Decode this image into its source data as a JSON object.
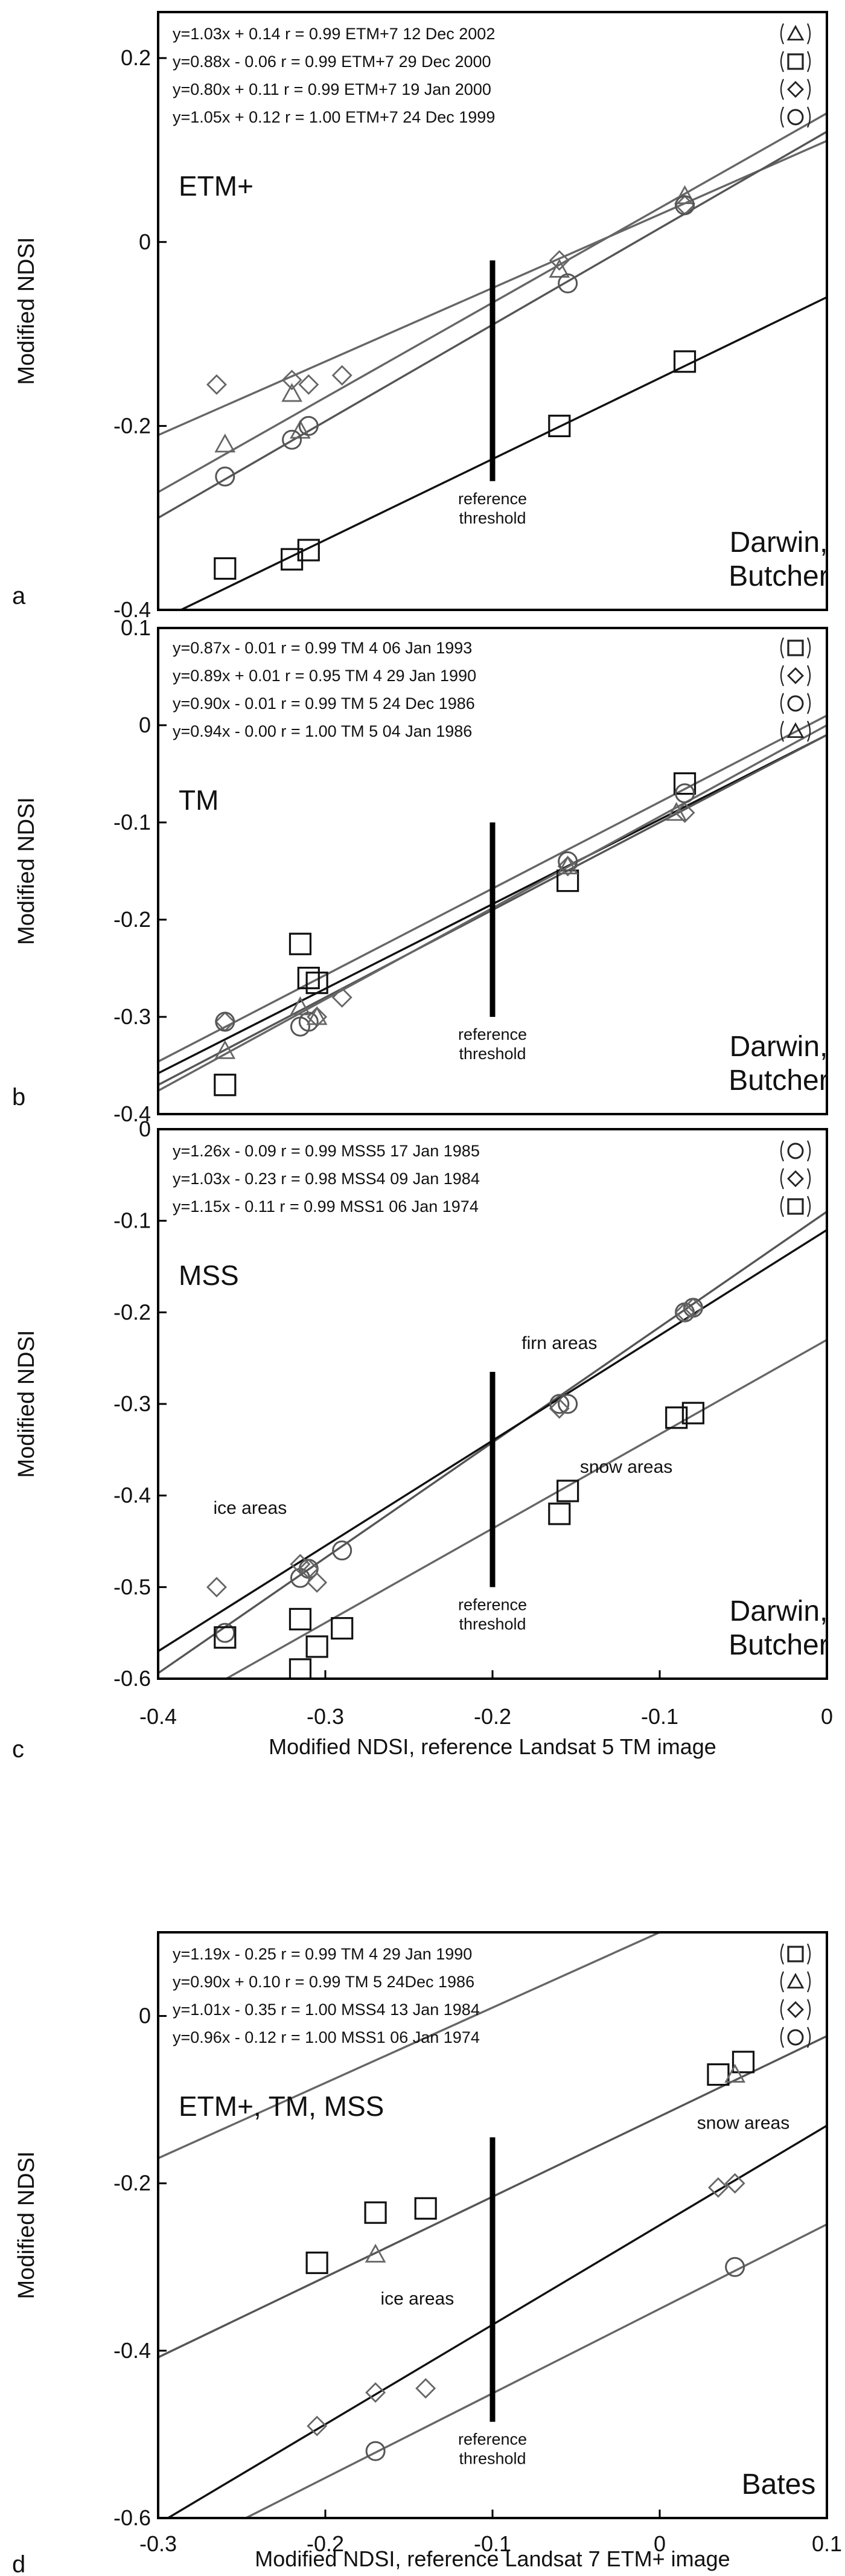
{
  "chart_data": [
    {
      "type": "scatter",
      "panel_label": "a",
      "dataset_label": "ETM+",
      "site_label_lines": [
        "Darwin,",
        "Butcher"
      ],
      "threshold_label_lines": [
        "reference",
        "threshold"
      ],
      "threshold_x": -0.2,
      "threshold_y_range": [
        -0.26,
        -0.02
      ],
      "xlim": [
        -0.4,
        0
      ],
      "ylim": [
        -0.4,
        0.25
      ],
      "y_ticks": [
        0.2,
        0,
        -0.2,
        -0.4
      ],
      "y_tick_labels": [
        "0.2",
        "0",
        "-0.2",
        "-0.4"
      ],
      "x_ticks": [],
      "x_tick_labels": [],
      "ylabel": "Modified NDSI",
      "xlabel": "",
      "grid": false,
      "legend": [
        {
          "text": "y=1.03x + 0.14 r = 0.99 ETM+7 12 Dec 2002",
          "marker": "triangle"
        },
        {
          "text": "y=0.88x - 0.06  r = 0.99 ETM+7 29 Dec 2000",
          "marker": "square"
        },
        {
          "text": "y=0.80x + 0.11 r = 0.99 ETM+7 19 Jan 2000",
          "marker": "diamond"
        },
        {
          "text": "y=1.05x + 0.12 r = 1.00 ETM+7 24 Dec 1999",
          "marker": "circle"
        }
      ],
      "series": [
        {
          "marker": "triangle",
          "color": "#666666",
          "slope": 1.03,
          "intercept": 0.14,
          "x": [
            -0.36,
            -0.32,
            -0.315,
            -0.16,
            -0.085
          ],
          "y": [
            -0.22,
            -0.165,
            -0.205,
            -0.03,
            0.05
          ]
        },
        {
          "marker": "square",
          "color": "#111111",
          "slope": 0.88,
          "intercept": -0.06,
          "x": [
            -0.36,
            -0.32,
            -0.31,
            -0.16,
            -0.085
          ],
          "y": [
            -0.355,
            -0.345,
            -0.335,
            -0.2,
            -0.13
          ]
        },
        {
          "marker": "diamond",
          "color": "#666666",
          "slope": 0.8,
          "intercept": 0.11,
          "x": [
            -0.365,
            -0.32,
            -0.31,
            -0.29,
            -0.16,
            -0.085
          ],
          "y": [
            -0.155,
            -0.15,
            -0.155,
            -0.145,
            -0.02,
            0.04
          ]
        },
        {
          "marker": "circle",
          "color": "#555555",
          "slope": 1.05,
          "intercept": 0.12,
          "x": [
            -0.36,
            -0.32,
            -0.31,
            -0.155,
            -0.085
          ],
          "y": [
            -0.255,
            -0.215,
            -0.2,
            -0.045,
            0.04
          ]
        }
      ]
    },
    {
      "type": "scatter",
      "panel_label": "b",
      "dataset_label": "TM",
      "site_label_lines": [
        "Darwin,",
        "Butcher"
      ],
      "threshold_label_lines": [
        "reference",
        "threshold"
      ],
      "threshold_x": -0.2,
      "threshold_y_range": [
        -0.3,
        -0.1
      ],
      "xlim": [
        -0.4,
        0
      ],
      "ylim": [
        -0.4,
        0.1
      ],
      "y_ticks": [
        0.1,
        0,
        -0.1,
        -0.2,
        -0.3,
        -0.4
      ],
      "y_tick_labels": [
        "0.1",
        "0",
        "-0.1",
        "-0.2",
        "-0.3",
        "-0.4"
      ],
      "x_ticks": [],
      "x_tick_labels": [],
      "ylabel": "Modified NDSI",
      "xlabel": "",
      "grid": false,
      "legend": [
        {
          "text": "y=0.87x - 0.01  r = 0.99  TM 4 06 Jan 1993",
          "marker": "square"
        },
        {
          "text": "y=0.89x + 0.01 r = 0.95  TM 4 29 Jan 1990",
          "marker": "diamond"
        },
        {
          "text": "y=0.90x - 0.01  r = 0.99  TM 5 24 Dec 1986",
          "marker": "circle"
        },
        {
          "text": "y=0.94x - 0.00  r = 1.00  TM 5 04 Jan 1986",
          "marker": "triangle"
        }
      ],
      "series": [
        {
          "marker": "square",
          "color": "#111111",
          "slope": 0.87,
          "intercept": -0.01,
          "x": [
            -0.36,
            -0.315,
            -0.31,
            -0.305,
            -0.155,
            -0.085
          ],
          "y": [
            -0.37,
            -0.225,
            -0.26,
            -0.265,
            -0.16,
            -0.06
          ]
        },
        {
          "marker": "diamond",
          "color": "#666666",
          "slope": 0.89,
          "intercept": 0.01,
          "x": [
            -0.36,
            -0.305,
            -0.29,
            -0.155,
            -0.085
          ],
          "y": [
            -0.305,
            -0.3,
            -0.28,
            -0.145,
            -0.09
          ]
        },
        {
          "marker": "circle",
          "color": "#555555",
          "slope": 0.9,
          "intercept": -0.01,
          "x": [
            -0.36,
            -0.315,
            -0.31,
            -0.155,
            -0.085
          ],
          "y": [
            -0.305,
            -0.31,
            -0.305,
            -0.14,
            -0.07
          ]
        },
        {
          "marker": "triangle",
          "color": "#666666",
          "slope": 0.94,
          "intercept": 0.0,
          "x": [
            -0.36,
            -0.315,
            -0.305,
            -0.155,
            -0.09
          ],
          "y": [
            -0.335,
            -0.29,
            -0.3,
            -0.145,
            -0.09
          ]
        }
      ]
    },
    {
      "type": "scatter",
      "panel_label": "c",
      "dataset_label": "MSS",
      "site_label_lines": [
        "Darwin,",
        "Butcher"
      ],
      "threshold_label_lines": [
        "reference",
        "threshold"
      ],
      "threshold_x": -0.2,
      "threshold_y_range": [
        -0.5,
        -0.265
      ],
      "annotations": [
        {
          "text": "firn areas",
          "x": -0.16,
          "y": -0.24
        },
        {
          "text": "ice areas",
          "x": -0.345,
          "y": -0.42
        },
        {
          "text": "snow areas",
          "x": -0.12,
          "y": -0.375
        }
      ],
      "xlim": [
        -0.4,
        0
      ],
      "ylim": [
        -0.6,
        0
      ],
      "y_ticks": [
        0,
        -0.1,
        -0.2,
        -0.3,
        -0.4,
        -0.5,
        -0.6
      ],
      "y_tick_labels": [
        "0",
        "-0.1",
        "-0.2",
        "-0.3",
        "-0.4",
        "-0.5",
        "-0.6"
      ],
      "x_ticks": [
        -0.4,
        -0.3,
        -0.2,
        -0.1,
        0
      ],
      "x_tick_labels": [
        "-0.4",
        "-0.3",
        "-0.2",
        "-0.1",
        "0"
      ],
      "ylabel": "Modified NDSI",
      "xlabel": "Modified NDSI, reference Landsat 5 TM image",
      "grid": false,
      "legend": [
        {
          "text": "y=1.26x - 0.09 r = 0.99 MSS5  17 Jan 1985",
          "marker": "circle"
        },
        {
          "text": "y=1.03x - 0.23 r = 0.98 MSS4  09 Jan 1984",
          "marker": "diamond"
        },
        {
          "text": "y=1.15x - 0.11 r = 0.99 MSS1  06 Jan 1974",
          "marker": "square"
        }
      ],
      "series": [
        {
          "marker": "circle",
          "color": "#555555",
          "slope": 1.26,
          "intercept": -0.09,
          "x": [
            -0.36,
            -0.315,
            -0.31,
            -0.29,
            -0.16,
            -0.155,
            -0.085,
            -0.08
          ],
          "y": [
            -0.55,
            -0.49,
            -0.48,
            -0.46,
            -0.3,
            -0.3,
            -0.2,
            -0.195
          ]
        },
        {
          "marker": "diamond",
          "color": "#666666",
          "slope": 1.03,
          "intercept": -0.23,
          "x": [
            -0.365,
            -0.315,
            -0.31,
            -0.305,
            -0.16,
            -0.085,
            -0.08
          ],
          "y": [
            -0.5,
            -0.475,
            -0.48,
            -0.495,
            -0.305,
            -0.2,
            -0.195
          ]
        },
        {
          "marker": "square",
          "color": "#111111",
          "slope": 1.15,
          "intercept": -0.11,
          "x": [
            -0.36,
            -0.315,
            -0.315,
            -0.305,
            -0.29,
            -0.16,
            -0.155,
            -0.09,
            -0.08
          ],
          "y": [
            -0.555,
            -0.535,
            -0.59,
            -0.565,
            -0.545,
            -0.42,
            -0.395,
            -0.315,
            -0.31
          ]
        }
      ]
    },
    {
      "type": "scatter",
      "panel_label": "d",
      "dataset_label": "ETM+, TM, MSS",
      "site_label_lines": [
        "Bates"
      ],
      "threshold_label_lines": [
        "reference",
        "threshold"
      ],
      "threshold_x": -0.1,
      "threshold_y_range": [
        -0.485,
        -0.145
      ],
      "annotations": [
        {
          "text": "ice areas",
          "x": -0.145,
          "y": -0.345
        },
        {
          "text": "snow areas",
          "x": 0.05,
          "y": -0.135
        }
      ],
      "xlim": [
        -0.3,
        0.1
      ],
      "ylim": [
        -0.6,
        0.1
      ],
      "y_ticks": [
        0,
        -0.2,
        -0.4,
        -0.6
      ],
      "y_tick_labels": [
        "0",
        "-0.2",
        "-0.4",
        "-0.6"
      ],
      "x_ticks": [
        -0.3,
        -0.2,
        -0.1,
        0,
        0.1
      ],
      "x_tick_labels": [
        "-0.3",
        "-0.2",
        "-0.1",
        "0",
        "0.1"
      ],
      "ylabel": "Modified NDSI",
      "xlabel": "Modified NDSI, reference Landsat 7 ETM+ image",
      "grid": false,
      "legend": [
        {
          "text": "y=1.19x - 0.25  r = 0.99 TM 4  29 Jan 1990",
          "marker": "square"
        },
        {
          "text": "y=0.90x + 0.10 r = 0.99 TM 5  24Dec 1986",
          "marker": "triangle"
        },
        {
          "text": "y=1.01x - 0.35  r = 1.00 MSS4 13 Jan 1984",
          "marker": "diamond"
        },
        {
          "text": "y=0.96x - 0.12  r = 1.00 MSS1 06 Jan 1974",
          "marker": "circle"
        }
      ],
      "series": [
        {
          "marker": "square",
          "color": "#111111",
          "slope": 1.19,
          "intercept": -0.25,
          "x": [
            -0.205,
            -0.17,
            -0.14,
            0.035,
            0.05
          ],
          "y": [
            -0.295,
            -0.235,
            -0.23,
            -0.07,
            -0.055
          ]
        },
        {
          "marker": "triangle",
          "color": "#666666",
          "slope": 0.9,
          "intercept": 0.1,
          "x": [
            -0.17,
            0.045
          ],
          "y": [
            -0.285,
            -0.07
          ]
        },
        {
          "marker": "diamond",
          "color": "#666666",
          "slope": 1.01,
          "intercept": -0.35,
          "x": [
            -0.205,
            -0.17,
            -0.14,
            0.035,
            0.045
          ],
          "y": [
            -0.49,
            -0.45,
            -0.445,
            -0.205,
            -0.2
          ]
        },
        {
          "marker": "circle",
          "color": "#555555",
          "slope": 0.96,
          "intercept": -0.12,
          "x": [
            -0.17,
            0.045
          ],
          "y": [
            -0.52,
            -0.3
          ]
        }
      ]
    }
  ]
}
